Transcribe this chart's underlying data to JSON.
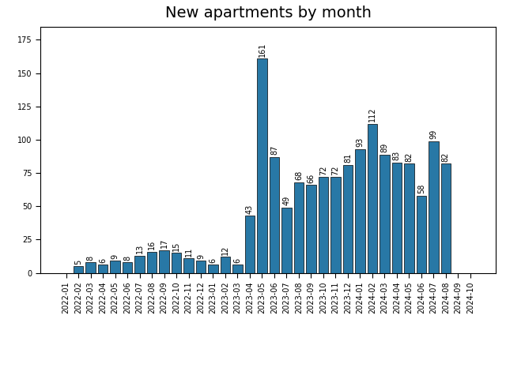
{
  "title": "New apartments by month",
  "categories": [
    "2022-01",
    "2022-02",
    "2022-03",
    "2022-04",
    "2022-05",
    "2022-06",
    "2022-07",
    "2022-08",
    "2022-09",
    "2022-10",
    "2022-11",
    "2022-12",
    "2023-01",
    "2023-02",
    "2023-03",
    "2023-04",
    "2023-05",
    "2023-06",
    "2023-07",
    "2023-08",
    "2023-09",
    "2023-10",
    "2023-11",
    "2023-12",
    "2024-01",
    "2024-02",
    "2024-03",
    "2024-04",
    "2024-05",
    "2024-06",
    "2024-07",
    "2024-08",
    "2024-09",
    "2024-10"
  ],
  "values": [
    0,
    5,
    8,
    6,
    9,
    8,
    13,
    16,
    17,
    15,
    11,
    9,
    6,
    12,
    6,
    43,
    161,
    87,
    49,
    68,
    66,
    72,
    72,
    81,
    93,
    112,
    89,
    83,
    82,
    58,
    99,
    82,
    0,
    0
  ],
  "bar_color": "#2878a6",
  "bar_edgecolor": "#000000",
  "background_color": "#ffffff",
  "title_fontsize": 14,
  "label_fontsize": 7,
  "tick_fontsize": 7,
  "ylim": [
    0,
    185
  ],
  "yticks": [
    0,
    25,
    50,
    75,
    100,
    125,
    150,
    175
  ]
}
